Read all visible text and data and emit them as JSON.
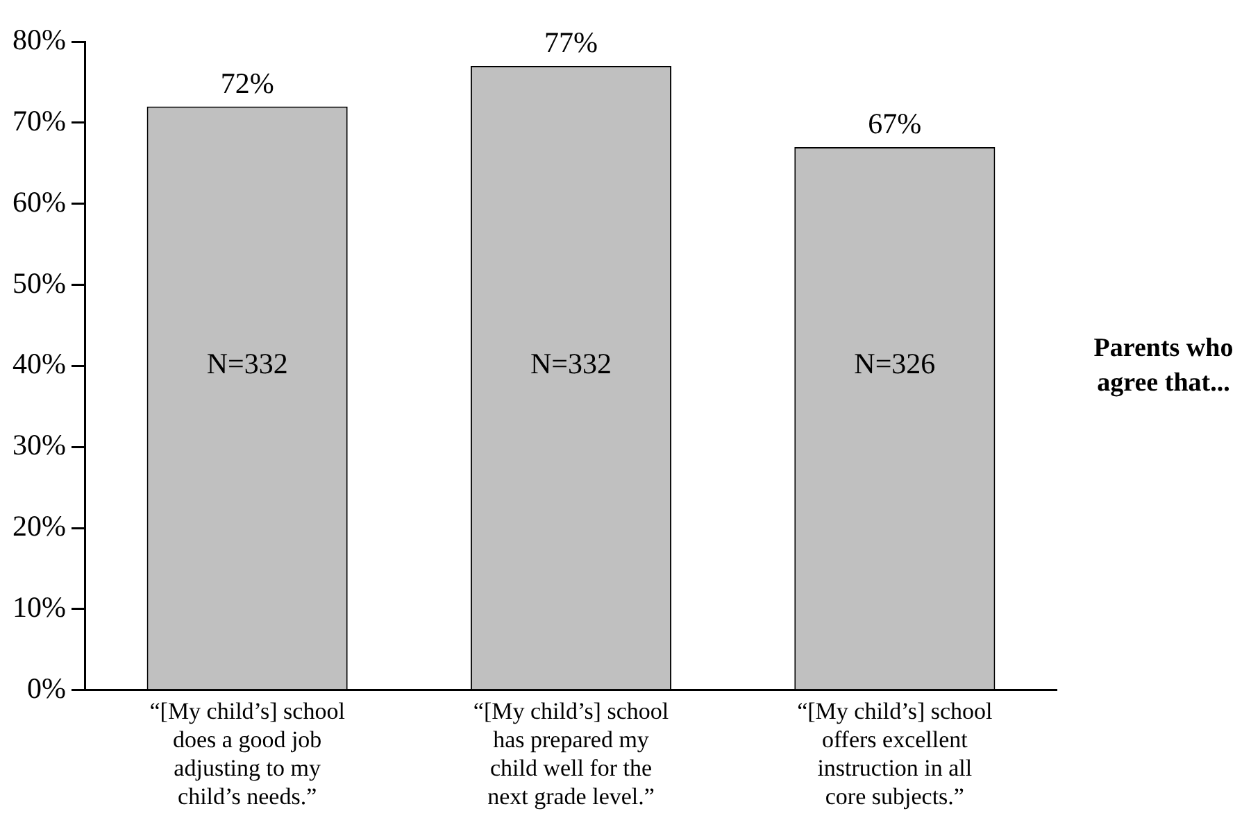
{
  "chart_data": {
    "type": "bar",
    "categories": [
      "“[My child’s] school does a good job adjusting to my child’s needs.”",
      "“[My child’s] school has prepared my child well for the next grade level.”",
      "“[My child’s] school offers excellent instruction in all core subjects.”"
    ],
    "values": [
      72,
      77,
      67
    ],
    "color": "#c0c0c0",
    "value_labels": [
      "72%",
      "77%",
      "67%"
    ],
    "ylim": [
      0,
      80
    ],
    "yticks": [
      {
        "value": 0,
        "label": "0%"
      },
      {
        "value": 10,
        "label": "10%"
      },
      {
        "value": 20,
        "label": "20%"
      },
      {
        "value": 30,
        "label": "30%"
      },
      {
        "value": 40,
        "label": "40%"
      },
      {
        "value": 50,
        "label": "50%"
      },
      {
        "value": 60,
        "label": "60%"
      },
      {
        "value": 70,
        "label": "70%"
      },
      {
        "value": 80,
        "label": "80%"
      }
    ],
    "annotations": [
      "N=332",
      "N=332",
      "N=326",
      "Parents who agree that..."
    ],
    "grid": false,
    "legend": false
  }
}
